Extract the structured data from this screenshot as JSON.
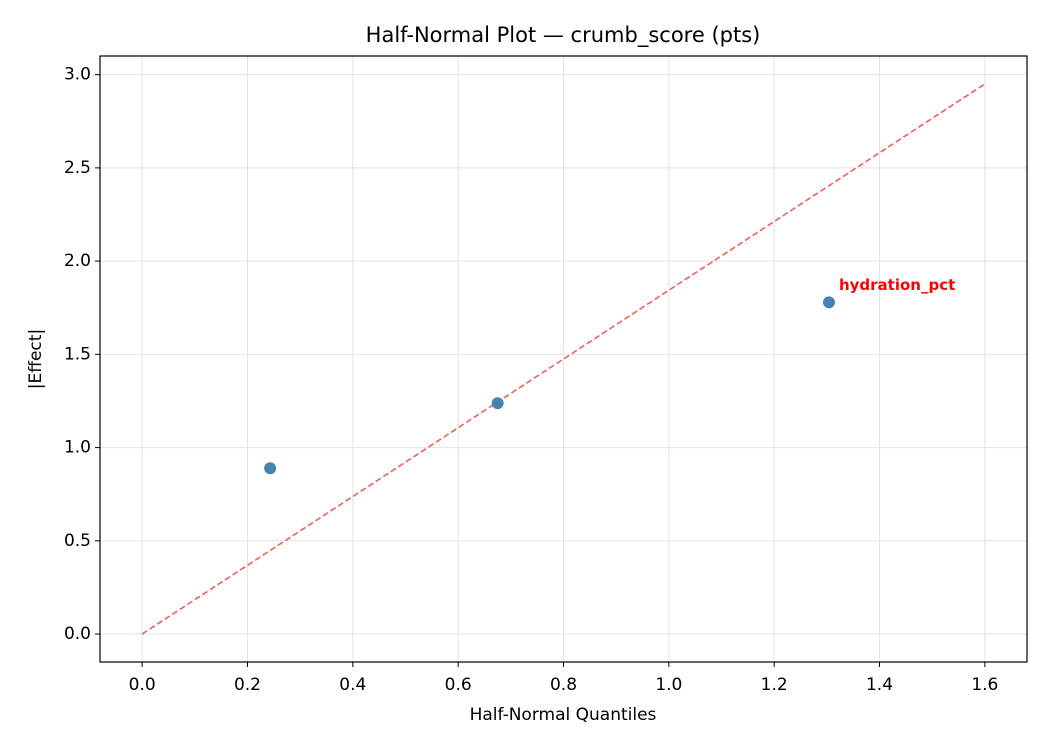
{
  "chart_data": {
    "type": "scatter",
    "title": "Half-Normal Plot — crumb_score (pts)",
    "x_label": "Half-Normal Quantiles",
    "y_label": "|Effect|",
    "x": [
      0.243,
      0.675,
      1.304
    ],
    "values": [
      0.889,
      1.238,
      1.779
    ],
    "color": "#4682b4",
    "point_labels": [
      null,
      null,
      "hydration_pct"
    ],
    "point_label_color": "#ff0000",
    "reference_line": {
      "x": [
        0,
        1.6
      ],
      "y": [
        0,
        2.95
      ],
      "color": "#f0605a"
    },
    "xlim": [
      -0.08,
      1.68
    ],
    "ylim": [
      -0.15,
      3.1
    ],
    "xticks": [
      {
        "value": 0,
        "label": "0.0"
      },
      0.2,
      0.4,
      0.6,
      0.8,
      {
        "value": 1,
        "label": "1.0"
      },
      1.2,
      1.4,
      1.6
    ],
    "yticks": [
      {
        "value": 0,
        "label": "0.0"
      },
      0.5,
      {
        "value": 1,
        "label": "1.0"
      },
      1.5,
      {
        "value": 2,
        "label": "2.0"
      },
      2.5,
      {
        "value": 3,
        "label": "3.0"
      }
    ],
    "grid": true
  }
}
